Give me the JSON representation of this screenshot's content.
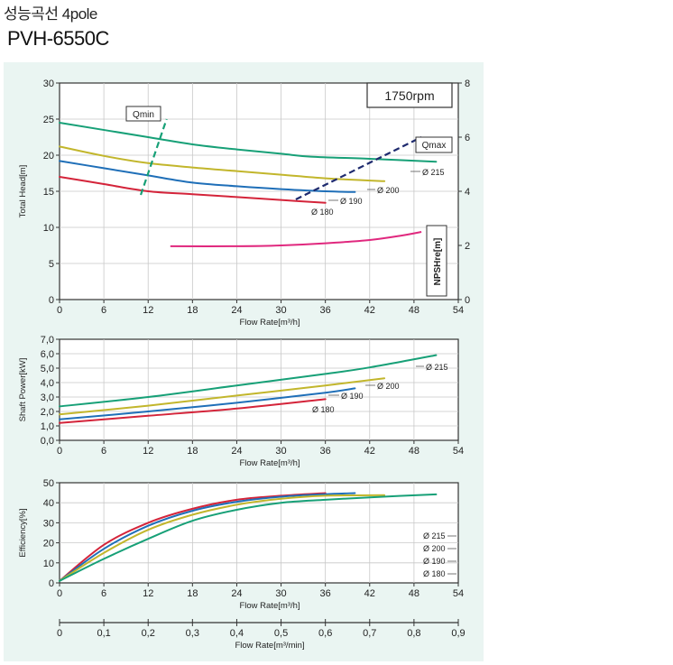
{
  "header": {
    "title_ko": "성능곡선 4pole",
    "model": "PVH-6550C"
  },
  "colors": {
    "d215": "#17a077",
    "d200": "#c2b62c",
    "d190": "#1f6fb8",
    "d180": "#d4243a",
    "npsh": "#e0287e",
    "qmin": "#17a077",
    "qmax": "#1e2a6e",
    "rpm": "#17a077",
    "panel": "#eaf5f2"
  },
  "chart_data": [
    {
      "id": "head",
      "type": "line",
      "xlabel": "Flow Rate[m³/h]",
      "ylabel": "Total Head[m]",
      "y2label": "NPSHre[m]",
      "xlim": [
        0,
        54
      ],
      "ylim": [
        0,
        30
      ],
      "y2lim": [
        0,
        8
      ],
      "xticks": [
        "0",
        "6",
        "12",
        "18",
        "24",
        "30",
        "36",
        "42",
        "48",
        "54"
      ],
      "yticks": [
        "0",
        "5",
        "10",
        "15",
        "20",
        "25",
        "30"
      ],
      "y2ticks": [
        "0",
        "2",
        "4",
        "6",
        "8"
      ],
      "badge": "1750rpm",
      "series": [
        {
          "name": "Ø 215",
          "color_key": "d215",
          "x": [
            0,
            12,
            18,
            24,
            30,
            34,
            42,
            51
          ],
          "y": [
            24.5,
            22.5,
            21.5,
            20.8,
            20.2,
            19.8,
            19.5,
            19.1
          ]
        },
        {
          "name": "Ø 200",
          "color_key": "d200",
          "x": [
            0,
            6,
            12,
            18,
            24,
            30,
            36,
            44
          ],
          "y": [
            21.2,
            19.9,
            18.9,
            18.3,
            17.8,
            17.3,
            16.8,
            16.4
          ]
        },
        {
          "name": "Ø 190",
          "color_key": "d190",
          "x": [
            0,
            6,
            12,
            18,
            24,
            30,
            36,
            40
          ],
          "y": [
            19.2,
            18.2,
            17.2,
            16.2,
            15.7,
            15.3,
            15.0,
            14.9
          ]
        },
        {
          "name": "Ø 180",
          "color_key": "d180",
          "x": [
            0,
            6,
            12,
            18,
            24,
            30,
            36
          ],
          "y": [
            17.0,
            16.0,
            15.0,
            14.6,
            14.2,
            13.8,
            13.4
          ]
        }
      ],
      "npsh": {
        "color_key": "npsh",
        "x": [
          15,
          24,
          30,
          36,
          42,
          46,
          49
        ],
        "y": [
          1.97,
          1.97,
          2.0,
          2.08,
          2.2,
          2.35,
          2.5
        ]
      },
      "qmin": {
        "label": "Qmin",
        "x": [
          11,
          14.5
        ],
        "y": [
          14.5,
          25.0
        ]
      },
      "qmax": {
        "label": "Qmax",
        "x": [
          32,
          49
        ],
        "y": [
          3.7,
          6.0
        ]
      }
    },
    {
      "id": "power",
      "type": "line",
      "xlabel": "Flow Rate[m³/h]",
      "ylabel": "Shaft Power[kW]",
      "xlim": [
        0,
        54
      ],
      "ylim": [
        0,
        7
      ],
      "xticks": [
        "0",
        "6",
        "12",
        "18",
        "24",
        "30",
        "36",
        "42",
        "48",
        "54"
      ],
      "yticks": [
        "0,0",
        "1,0",
        "2,0",
        "3,0",
        "4,0",
        "5,0",
        "6,0",
        "7,0"
      ],
      "series": [
        {
          "name": "Ø 215",
          "color_key": "d215",
          "x": [
            0,
            12,
            24,
            36,
            42,
            51
          ],
          "y": [
            2.35,
            3.0,
            3.8,
            4.6,
            5.05,
            5.9
          ]
        },
        {
          "name": "Ø 200",
          "color_key": "d200",
          "x": [
            0,
            12,
            24,
            36,
            44
          ],
          "y": [
            1.8,
            2.4,
            3.1,
            3.8,
            4.3
          ]
        },
        {
          "name": "Ø 190",
          "color_key": "d190",
          "x": [
            0,
            12,
            24,
            36,
            40
          ],
          "y": [
            1.45,
            2.0,
            2.6,
            3.3,
            3.6
          ]
        },
        {
          "name": "Ø 180",
          "color_key": "d180",
          "x": [
            0,
            12,
            24,
            36
          ],
          "y": [
            1.2,
            1.7,
            2.2,
            2.85
          ]
        }
      ]
    },
    {
      "id": "efficiency",
      "type": "line",
      "xlabel": "Flow Rate[m³/h]",
      "ylabel": "Efficiency[%]",
      "xlim": [
        0,
        54
      ],
      "ylim": [
        0,
        50
      ],
      "xticks": [
        "0",
        "6",
        "12",
        "18",
        "24",
        "30",
        "36",
        "42",
        "48",
        "54"
      ],
      "yticks": [
        "0",
        "10",
        "20",
        "30",
        "40",
        "50"
      ],
      "legend": [
        "Ø 215",
        "Ø 200",
        "Ø 190",
        "Ø 180"
      ],
      "series": [
        {
          "name": "Ø 180",
          "color_key": "d180",
          "x": [
            0,
            6,
            12,
            18,
            24,
            30,
            36
          ],
          "y": [
            1,
            19,
            30,
            37,
            41.5,
            43.5,
            44.8
          ]
        },
        {
          "name": "Ø 190",
          "color_key": "d190",
          "x": [
            0,
            6,
            12,
            18,
            24,
            30,
            36,
            40
          ],
          "y": [
            1,
            17,
            28.5,
            36,
            40.5,
            43,
            44.3,
            44.8
          ]
        },
        {
          "name": "Ø 200",
          "color_key": "d200",
          "x": [
            0,
            6,
            12,
            18,
            24,
            30,
            36,
            44
          ],
          "y": [
            1,
            15,
            26.5,
            34,
            39,
            42,
            43.5,
            43.8
          ]
        },
        {
          "name": "Ø 215",
          "color_key": "d215",
          "x": [
            0,
            6,
            12,
            18,
            24,
            30,
            36,
            42,
            51
          ],
          "y": [
            1,
            12,
            22,
            31,
            36.5,
            40,
            41.5,
            42.7,
            44.2
          ]
        }
      ]
    },
    {
      "id": "flow-min-scale",
      "type": "axis",
      "xlabel": "Flow Rate[m³/min]",
      "xlim": [
        0,
        0.9
      ],
      "xticks": [
        "0",
        "0,1",
        "0,2",
        "0,3",
        "0,4",
        "0,5",
        "0,6",
        "0,7",
        "0,8",
        "0,9"
      ]
    }
  ]
}
